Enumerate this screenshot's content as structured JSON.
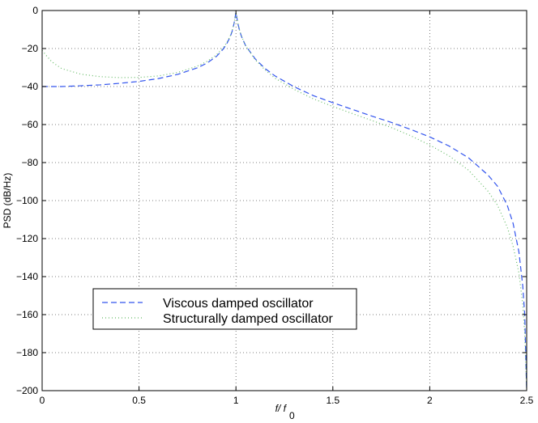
{
  "chart_data": {
    "type": "line",
    "title": "",
    "xlabel": "f/ f",
    "xlabel_sub": "0",
    "ylabel": "PSD (dB/Hz)",
    "xlim": [
      0,
      2.5
    ],
    "ylim": [
      -200,
      0
    ],
    "xticks": [
      0,
      0.5,
      1,
      1.5,
      2,
      2.5
    ],
    "xtick_labels": [
      "0",
      "0.5",
      "1",
      "1.5",
      "2",
      "2.5"
    ],
    "yticks": [
      0,
      -20,
      -40,
      -60,
      -80,
      -100,
      -120,
      -140,
      -160,
      -180,
      -200
    ],
    "ytick_labels": [
      "0",
      "−20",
      "−40",
      "−60",
      "−80",
      "−100",
      "−120",
      "−140",
      "−160",
      "−180",
      "−200"
    ],
    "grid": true,
    "legend_position": "lower-left",
    "series": [
      {
        "name": "Viscous damped oscillator",
        "color": "#3355ee",
        "style": "dashed",
        "x": [
          0,
          0.1,
          0.2,
          0.3,
          0.4,
          0.5,
          0.6,
          0.7,
          0.8,
          0.85,
          0.9,
          0.93,
          0.95,
          0.97,
          0.98,
          0.99,
          1.0,
          1.01,
          1.02,
          1.03,
          1.05,
          1.1,
          1.15,
          1.2,
          1.3,
          1.4,
          1.5,
          1.6,
          1.7,
          1.8,
          1.9,
          2.0,
          2.1,
          2.2,
          2.3,
          2.35,
          2.4,
          2.43,
          2.46,
          2.48,
          2.49,
          2.5
        ],
        "y": [
          -40,
          -40,
          -39.6,
          -39.1,
          -38.3,
          -37.3,
          -35.8,
          -33.6,
          -30.2,
          -27.7,
          -24.1,
          -20.8,
          -18.0,
          -13.9,
          -11.1,
          -6.9,
          -1.0,
          -6.9,
          -11.1,
          -14.0,
          -18.5,
          -25.5,
          -30.5,
          -34.3,
          -40.1,
          -44.8,
          -48.5,
          -52.0,
          -55.5,
          -58.8,
          -62.5,
          -66.5,
          -71.3,
          -77.5,
          -86.5,
          -92.5,
          -102.5,
          -112.0,
          -127.0,
          -145.0,
          -160.0,
          -200.0
        ]
      },
      {
        "name": "Structurally damped oscillator",
        "color": "#66bb66",
        "style": "dotted",
        "x": [
          0,
          0.02,
          0.05,
          0.1,
          0.2,
          0.3,
          0.4,
          0.5,
          0.6,
          0.7,
          0.8,
          0.85,
          0.9,
          0.93,
          0.95,
          0.97,
          0.98,
          0.99,
          1.0,
          1.01,
          1.02,
          1.03,
          1.05,
          1.1,
          1.15,
          1.2,
          1.3,
          1.4,
          1.5,
          1.6,
          1.7,
          1.8,
          1.9,
          2.0,
          2.1,
          2.2,
          2.3,
          2.35,
          2.4,
          2.43,
          2.46,
          2.48,
          2.49,
          2.5
        ],
        "y": [
          -21,
          -23.5,
          -27,
          -30.5,
          -33.5,
          -34.8,
          -35.3,
          -35.2,
          -34.4,
          -32.6,
          -29.3,
          -26.8,
          -23.3,
          -20.1,
          -17.4,
          -13.5,
          -10.8,
          -6.8,
          -1.0,
          -6.8,
          -10.8,
          -13.8,
          -18.5,
          -26.0,
          -31.2,
          -35.5,
          -41.5,
          -46.5,
          -50.5,
          -54.2,
          -57.8,
          -61.5,
          -65.8,
          -70.8,
          -76.5,
          -84.0,
          -95.0,
          -102.5,
          -114.0,
          -124.0,
          -138.0,
          -155.0,
          -170.0,
          -200.0
        ]
      }
    ]
  }
}
